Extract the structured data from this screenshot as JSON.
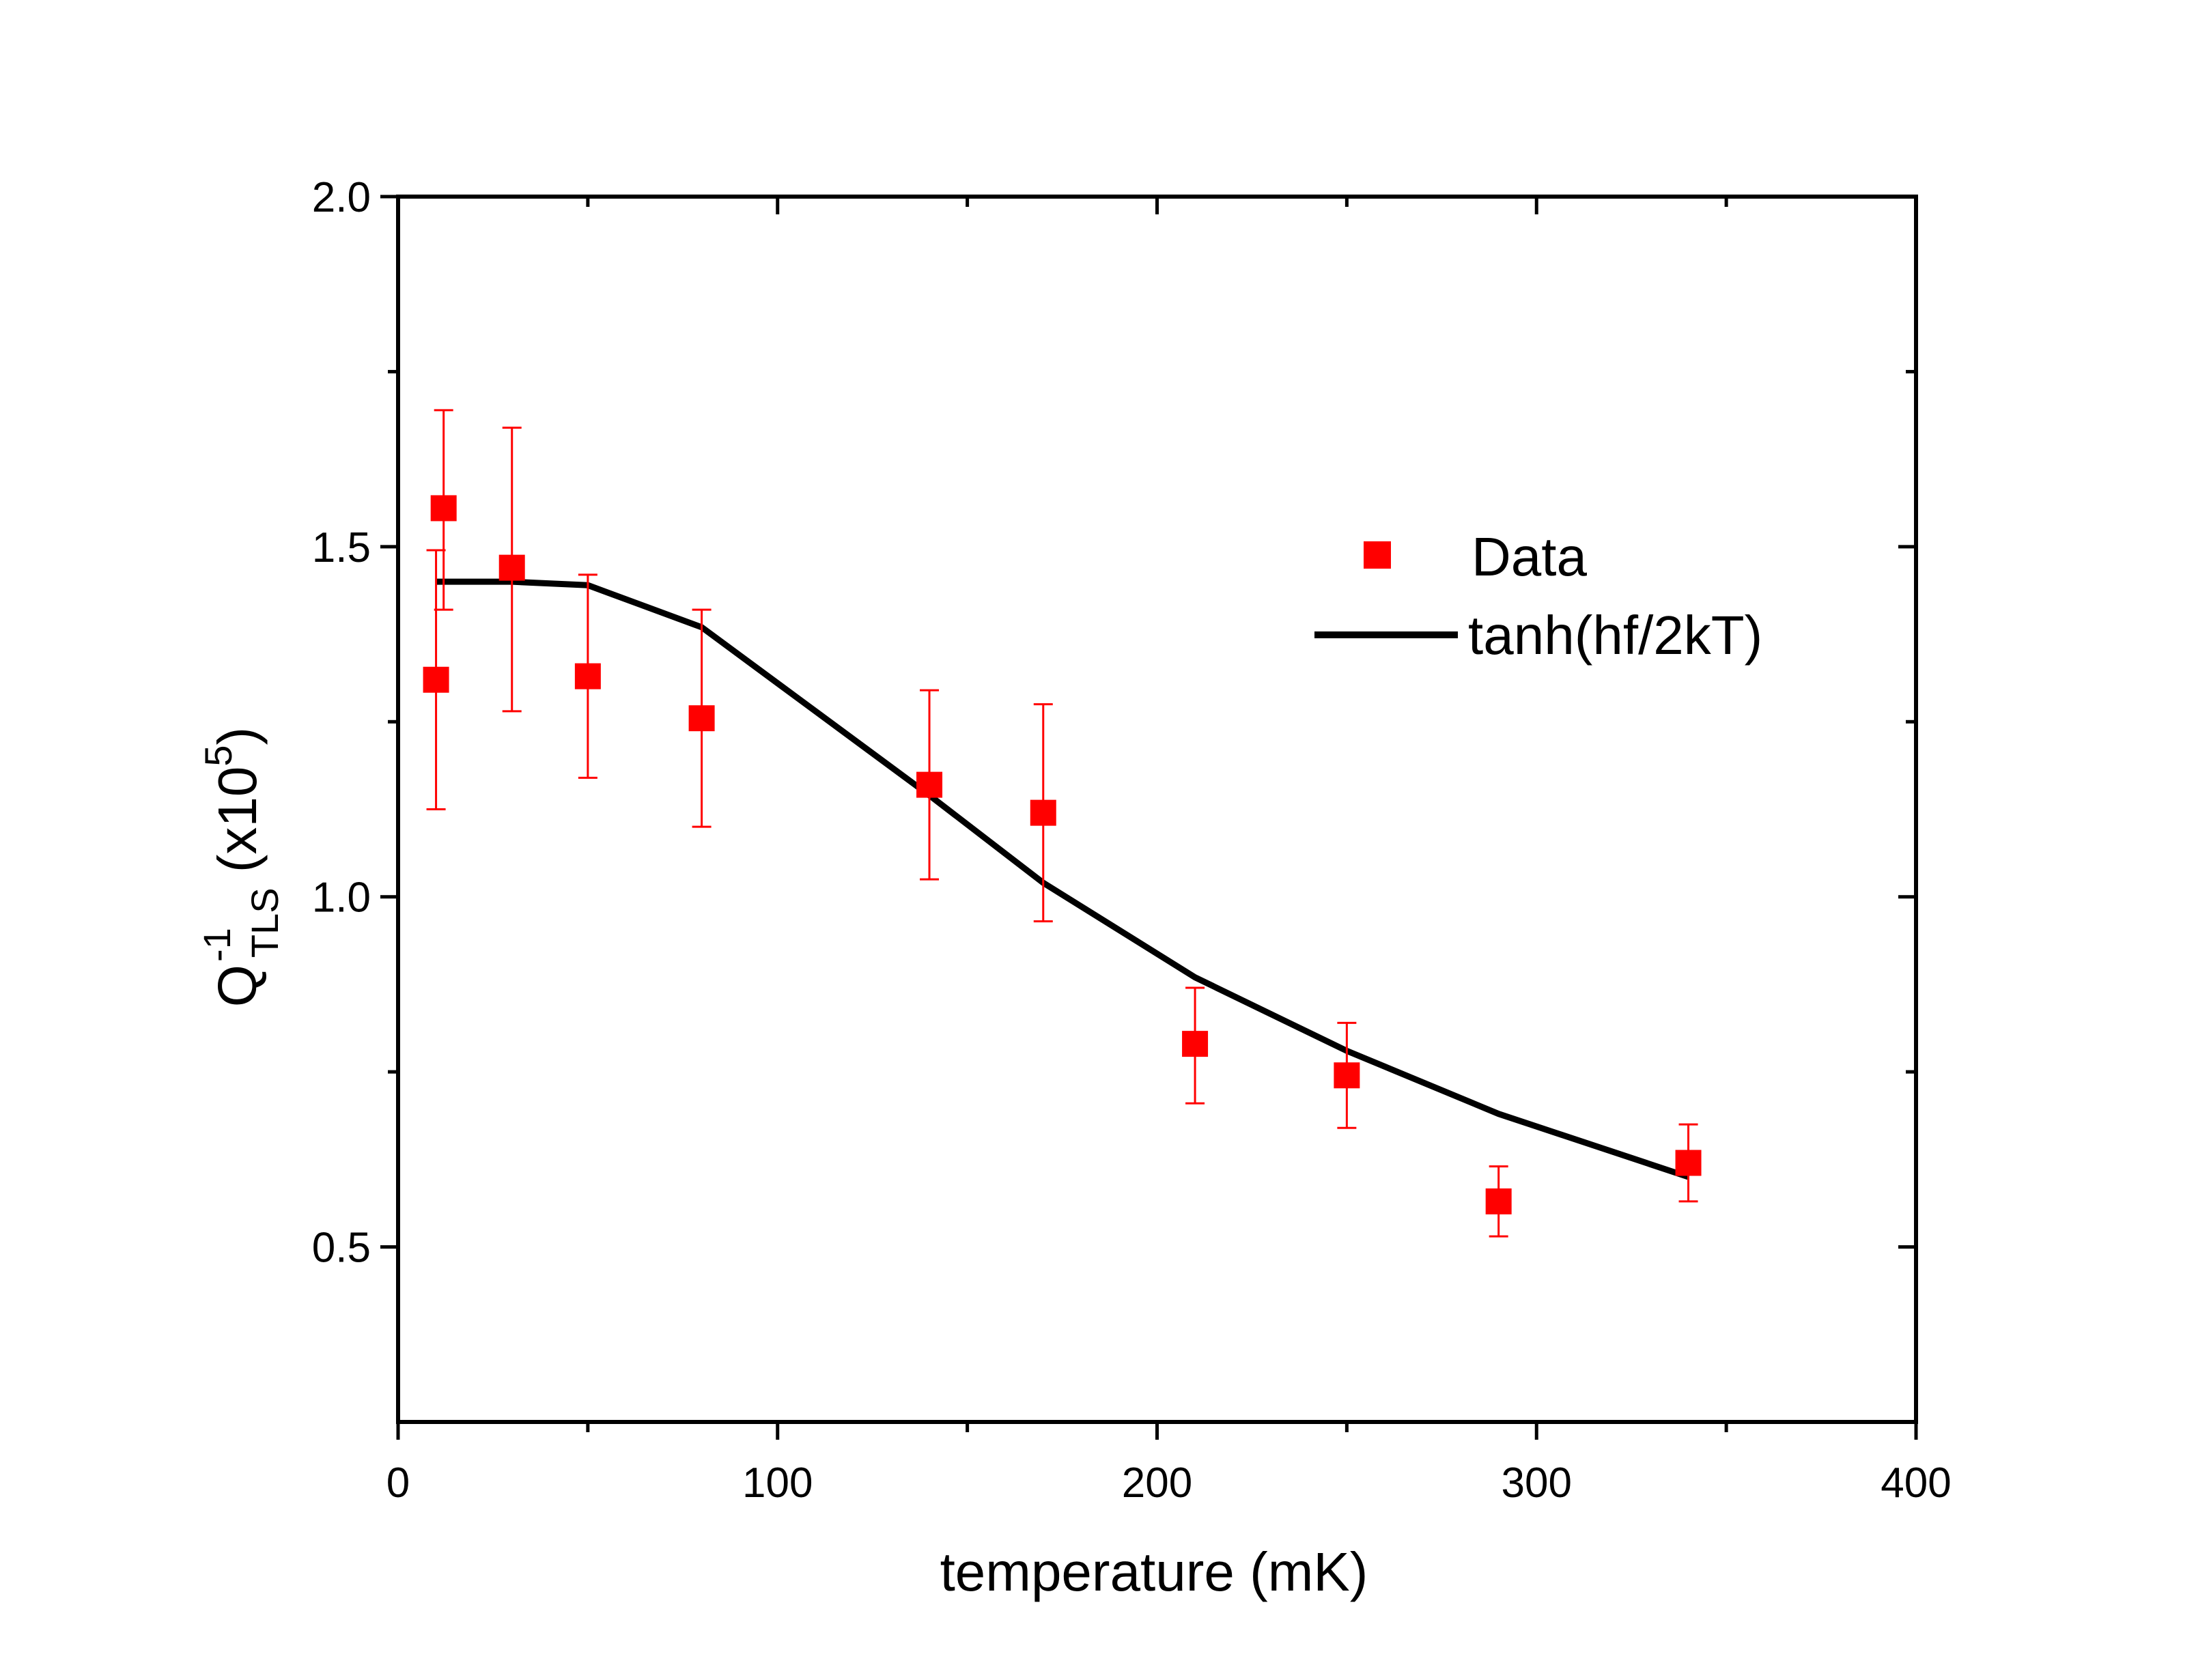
{
  "chart_data": {
    "type": "scatter",
    "title": "",
    "xlabel": "temperature (mK)",
    "ylabel": {
      "base": "Q",
      "superscript": "-1",
      "subscript": "TLS",
      "suffix_open": " (x10",
      "suffix_exp": "5",
      "suffix_close": ")"
    },
    "xlim": [
      0,
      400
    ],
    "ylim": [
      0.25,
      2.0
    ],
    "x_ticks": [
      0,
      100,
      200,
      300,
      400
    ],
    "x_tick_labels": [
      "0",
      "100",
      "200",
      "300",
      "400"
    ],
    "x_minor_ticks": [
      50,
      150,
      250,
      350
    ],
    "y_ticks": [
      0.5,
      1.0,
      1.5,
      2.0
    ],
    "y_tick_labels": [
      "0.5",
      "1.0",
      "1.5",
      "2.0"
    ],
    "y_minor_ticks": [
      0.75,
      1.25,
      1.75
    ],
    "grid": false,
    "legend_position": "upper-right",
    "series": [
      {
        "name": "Data",
        "kind": "scatter-errorbar",
        "marker": "square",
        "color": "#ff0000",
        "x": [
          10,
          12,
          30,
          50,
          80,
          140,
          170,
          210,
          250,
          290,
          340
        ],
        "y": [
          1.31,
          1.555,
          1.47,
          1.315,
          1.255,
          1.16,
          1.12,
          0.79,
          0.745,
          0.565,
          0.62
        ],
        "y_err_low": [
          1.125,
          1.41,
          1.265,
          1.17,
          1.1,
          1.025,
          0.965,
          0.705,
          0.67,
          0.515,
          0.565
        ],
        "y_err_high": [
          1.495,
          1.695,
          1.67,
          1.46,
          1.41,
          1.295,
          1.275,
          0.87,
          0.82,
          0.615,
          0.675
        ]
      },
      {
        "name": "tanh(hf/2kT)",
        "kind": "line",
        "color": "#000000",
        "x": [
          10,
          30,
          50,
          80,
          110,
          140,
          170,
          210,
          250,
          290,
          340
        ],
        "y": [
          1.45,
          1.45,
          1.445,
          1.385,
          1.265,
          1.145,
          1.02,
          0.885,
          0.78,
          0.69,
          0.6
        ]
      }
    ]
  }
}
